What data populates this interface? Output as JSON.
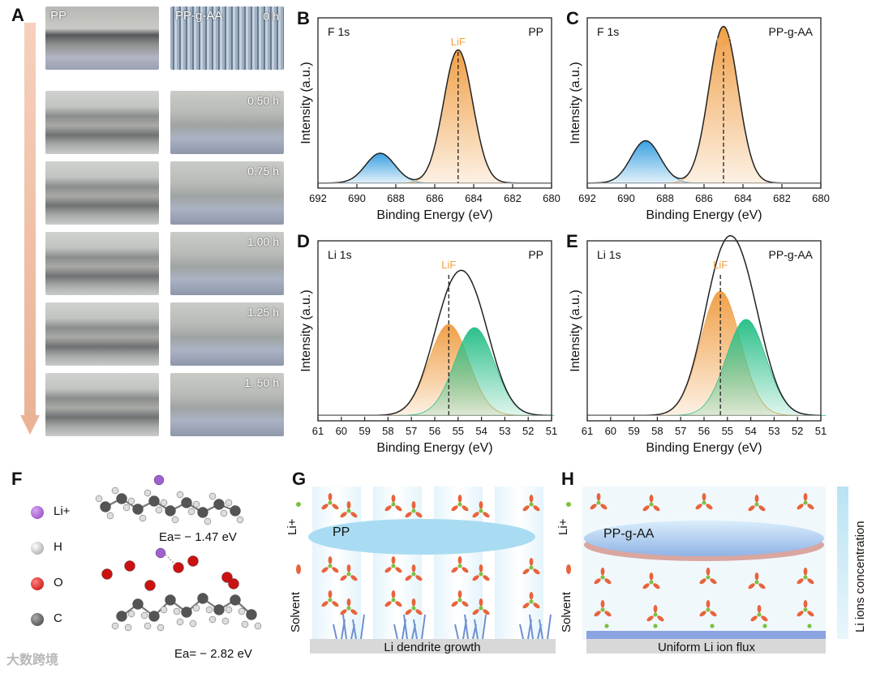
{
  "panels": {
    "A": {
      "label": "A",
      "col_pp": "PP",
      "col_ppgaa": "PP-g-AA",
      "times": [
        "0 h",
        "0.50 h",
        "0.75 h",
        "1.00 h",
        "1.25 h",
        "1. 50 h"
      ]
    },
    "B": {
      "label": "B",
      "title": "F 1s",
      "sample": "PP",
      "marker": "LiF",
      "xlabel": "Binding Energy (eV)",
      "ylabel": "Intensity (a.u.)",
      "ticks": [
        "692",
        "690",
        "688",
        "686",
        "684",
        "682",
        "680"
      ]
    },
    "C": {
      "label": "C",
      "title": "F 1s",
      "sample": "PP-g-AA",
      "marker": "LiF",
      "xlabel": "Binding Energy (eV)",
      "ylabel": "Intensity (a.u.)",
      "ticks": [
        "692",
        "690",
        "688",
        "686",
        "684",
        "682",
        "680"
      ]
    },
    "D": {
      "label": "D",
      "title": "Li 1s",
      "sample": "PP",
      "marker": "LiF",
      "xlabel": "Binding Energy (eV)",
      "ylabel": "Intensity (a.u.)",
      "ticks": [
        "61",
        "60",
        "59",
        "58",
        "57",
        "56",
        "55",
        "54",
        "53",
        "52",
        "51"
      ]
    },
    "E": {
      "label": "E",
      "title": "Li 1s",
      "sample": "PP-g-AA",
      "marker": "LiF",
      "xlabel": "Binding Energy (eV)",
      "ylabel": "Intensity (a.u.)",
      "ticks": [
        "61",
        "60",
        "59",
        "58",
        "57",
        "56",
        "55",
        "54",
        "53",
        "52",
        "51"
      ]
    },
    "F": {
      "label": "F",
      "legend": [
        "Li+",
        "H",
        "O",
        "C"
      ],
      "ea1": "Ea= − 1.47 eV",
      "ea2": "Ea= − 2.82 eV"
    },
    "G": {
      "label": "G",
      "film": "PP",
      "li": "Li+",
      "solvent": "Solvent",
      "caption": "Li dendrite growth"
    },
    "H": {
      "label": "H",
      "film": "PP-g-AA",
      "li": "Li+",
      "solvent": "Solvent",
      "caption": "Uniform Li ion flux",
      "side": "Li ions concentration"
    }
  },
  "colors": {
    "orange": "#f0a048",
    "blue": "#3aa0e0",
    "green": "#2cc08a",
    "lif": "#f0a040"
  },
  "chart_data": [
    {
      "type": "line",
      "title": "F 1s",
      "sample": "PP",
      "xlabel": "Binding Energy (eV)",
      "ylabel": "Intensity (a.u.)",
      "xlim": [
        692,
        680
      ],
      "peaks": [
        {
          "name": "blue",
          "center": 688.8,
          "height": 0.19
        },
        {
          "name": "LiF",
          "center": 684.8,
          "height": 0.85
        }
      ],
      "lif_line": 684.8
    },
    {
      "type": "line",
      "title": "F 1s",
      "sample": "PP-g-AA",
      "xlabel": "Binding Energy (eV)",
      "ylabel": "Intensity (a.u.)",
      "xlim": [
        692,
        680
      ],
      "peaks": [
        {
          "name": "blue",
          "center": 689.0,
          "height": 0.27
        },
        {
          "name": "LiF",
          "center": 685.0,
          "height": 1.0
        }
      ],
      "lif_line": 685.0
    },
    {
      "type": "line",
      "title": "Li 1s",
      "sample": "PP",
      "xlabel": "Binding Energy (eV)",
      "ylabel": "Intensity (a.u.)",
      "xlim": [
        61,
        51
      ],
      "peaks": [
        {
          "name": "LiF",
          "center": 55.4,
          "height": 0.55
        },
        {
          "name": "green",
          "center": 54.3,
          "height": 0.53
        }
      ],
      "lif_line": 55.4
    },
    {
      "type": "line",
      "title": "Li 1s",
      "sample": "PP-g-AA",
      "xlabel": "Binding Energy (eV)",
      "ylabel": "Intensity (a.u.)",
      "xlim": [
        61,
        51
      ],
      "peaks": [
        {
          "name": "LiF",
          "center": 55.3,
          "height": 0.75
        },
        {
          "name": "green",
          "center": 54.2,
          "height": 0.58
        }
      ],
      "lif_line": 55.3
    }
  ],
  "watermark": "大数跨境"
}
